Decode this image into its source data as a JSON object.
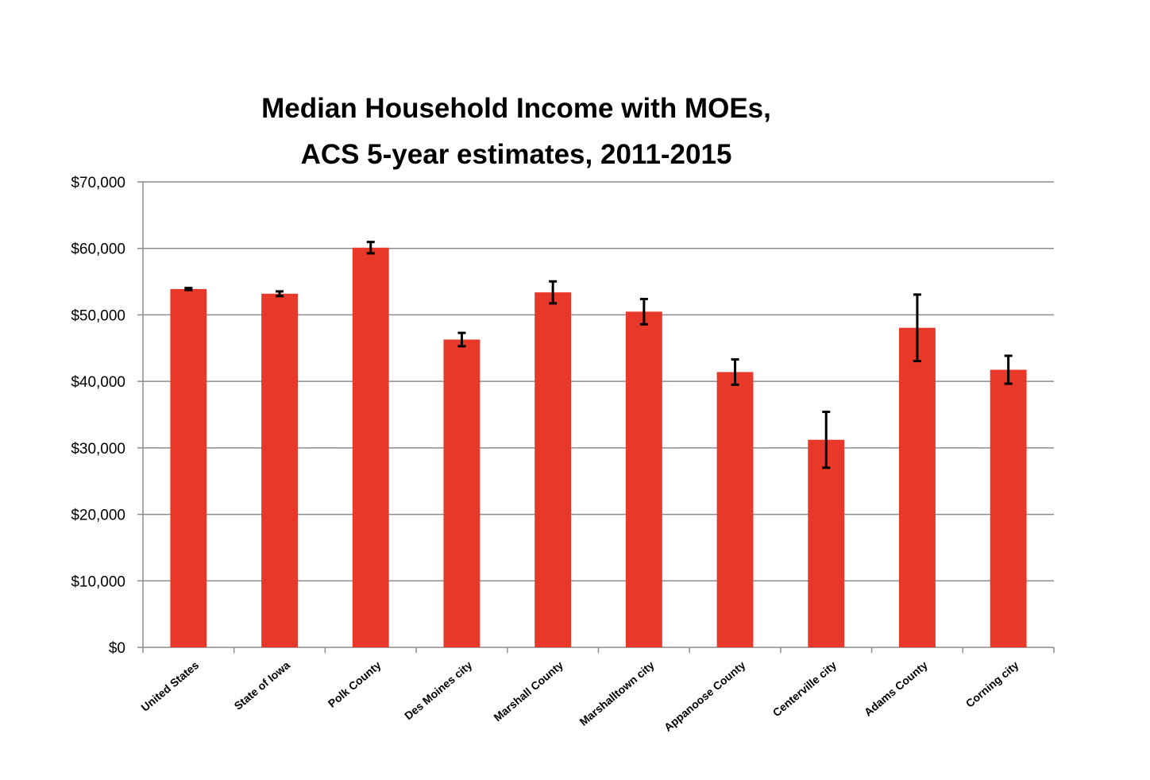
{
  "chart_data": {
    "type": "bar",
    "title_lines": [
      "Median Household Income with MOEs,",
      "ACS 5-year estimates, 2011-2015"
    ],
    "categories": [
      "United States",
      "State of Iowa",
      "Polk County",
      "Des Moines city",
      "Marshall County",
      "Marshalltown city",
      "Appanoose County",
      "Centerville city",
      "Adams County",
      "Corning city"
    ],
    "series": [
      {
        "values": [
          53889,
          53183,
          60113,
          46290,
          53387,
          50488,
          41401,
          31217,
          48056,
          41750
        ],
        "moe": [
          150,
          350,
          850,
          1000,
          1650,
          1900,
          1900,
          4200,
          5000,
          2100
        ]
      }
    ],
    "ylim": [
      0,
      70000
    ],
    "y_ticks": [
      0,
      10000,
      20000,
      30000,
      40000,
      50000,
      60000,
      70000
    ],
    "y_tick_labels": [
      "$0",
      "$10,000",
      "$20,000",
      "$30,000",
      "$40,000",
      "$50,000",
      "$60,000",
      "$70,000"
    ],
    "grid": true,
    "legend": "none",
    "colors": {
      "bar": "#e8382a",
      "error_bar": "#000000",
      "grid": "#8c8c8c",
      "axis": "#8c8c8c"
    }
  }
}
